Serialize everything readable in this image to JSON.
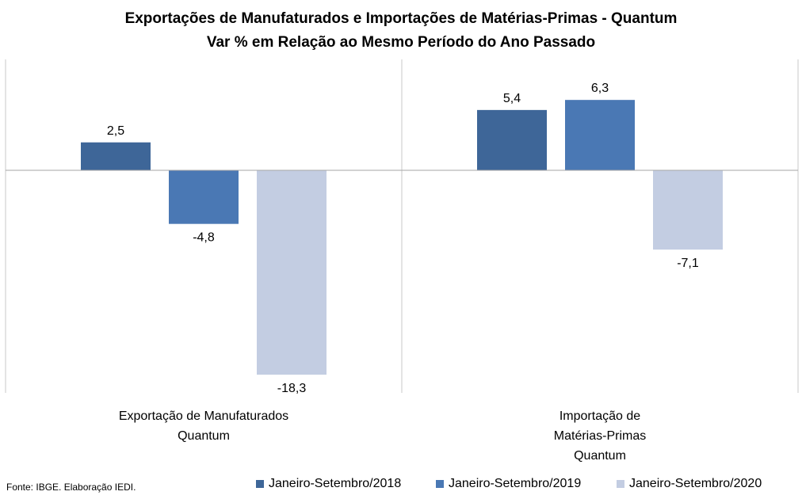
{
  "chart_data": {
    "type": "bar",
    "title": "Exportações de Manufaturados e Importações de Matérias-Primas - Quantum",
    "subtitle": "Var % em Relação ao Mesmo Período do Ano Passado",
    "categories": [
      [
        "Exportação de Manufaturados",
        "Quantum"
      ],
      [
        "Importação de",
        "Matérias-Primas",
        "Quantum"
      ]
    ],
    "series": [
      {
        "name": "Janeiro-Setembro/2018",
        "color": "#3e6698",
        "values": [
          2.5,
          5.4
        ],
        "labels": [
          "2,5",
          "5,4"
        ]
      },
      {
        "name": "Janeiro-Setembro/2019",
        "color": "#4a78b4",
        "values": [
          -4.8,
          6.3
        ],
        "labels": [
          "-4,8",
          "6,3"
        ]
      },
      {
        "name": "Janeiro-Setembro/2020",
        "color": "#c3cde2",
        "values": [
          -18.3,
          -7.1
        ],
        "labels": [
          "-18,3",
          "-7,1"
        ]
      }
    ],
    "ylim": [
      -20,
      11.5
    ],
    "grid": false,
    "legend_position": "bottom"
  },
  "source": "Fonte: IBGE. Elaboração IEDI."
}
